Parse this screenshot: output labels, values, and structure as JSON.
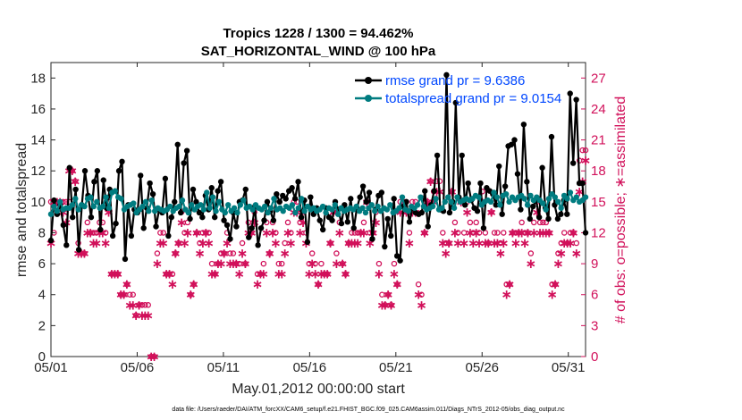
{
  "chart_data": {
    "type": "line",
    "title": "Tropics 1228 / 1300 = 94.462%",
    "subtitle": "SAT_HORIZONTAL_WIND @ 100 hPa",
    "xlabel": "May.01,2012 00:00:00 start",
    "ylabel": "rmse and totalspread",
    "y2label": "# of obs: o=possible; ∗=assimilated",
    "xlim": [
      0,
      31
    ],
    "ylim": [
      0,
      19
    ],
    "y2lim": [
      0,
      28.5
    ],
    "xticks": [
      0,
      5,
      10,
      15,
      20,
      25,
      30
    ],
    "xticklabels": [
      "05/01",
      "05/06",
      "05/11",
      "05/16",
      "05/21",
      "05/26",
      "05/31"
    ],
    "yticks": [
      0,
      2,
      4,
      6,
      8,
      10,
      12,
      14,
      16,
      18
    ],
    "y2ticks": [
      0,
      3,
      6,
      9,
      12,
      15,
      18,
      21,
      24,
      27
    ],
    "footer": "data file: /Users/raeder/DAI/ATM_forcXX/CAM6_setup/f.e21.FHIST_BGC.f09_025.CAM6assim.011/Diags_NTrS_2012-05/obs_diag_output.nc",
    "series": [
      {
        "name": "rmse grand pr = 9.6386",
        "color": "#000000",
        "axis": "left",
        "values": [
          7.5,
          10.1,
          9.2,
          9.8,
          8.5,
          7.2,
          12.2,
          9.0,
          10.8,
          6.9,
          9.8,
          12.0,
          10.4,
          9.0,
          11.3,
          12.0,
          8.2,
          11.4,
          9.6,
          10.8,
          7.8,
          8.6,
          12.0,
          12.6,
          6.3,
          9.8,
          7.8,
          9.5,
          9.3,
          11.7,
          8.3,
          9.6,
          11.2,
          10.5,
          8.4,
          9.5,
          9.3,
          11.5,
          7.8,
          9.0,
          10.0,
          13.7,
          9.3,
          12.5,
          13.3,
          8.9,
          10.8,
          10.0,
          9.3,
          9.0,
          10.4,
          9.5,
          10.9,
          9.0,
          10.7,
          11.3,
          8.8,
          8.5,
          7.6,
          9.3,
          8.4,
          10.0,
          10.1,
          10.8,
          7.7,
          8.3,
          9.7,
          7.2,
          8.3,
          8.8,
          10.0,
          9.4,
          8.8,
          10.5,
          10.0,
          10.4,
          10.2,
          10.7,
          10.9,
          10.2,
          11.3,
          9.0,
          10.1,
          7.4,
          10.3,
          9.2,
          9.6,
          8.8,
          8.2,
          9.6,
          9.0,
          8.8,
          10.0,
          9.5,
          8.6,
          9.8,
          8.7,
          10.2,
          8.3,
          9.6,
          10.3,
          11.0,
          10.0,
          10.6,
          7.6,
          9.5,
          10.4,
          10.6,
          7.1,
          8.9,
          7.8,
          10.2,
          6.5,
          6.2,
          9.7,
          10.0,
          8.7,
          9.6,
          9.3,
          9.2,
          9.3,
          10.7,
          8.4,
          9.8,
          10.7,
          13.0,
          9.5,
          9.4,
          18.2,
          9.3,
          10.0,
          16.4,
          10.3,
          13.0,
          9.8,
          11.2,
          10.1,
          9.6,
          9.4,
          11.2,
          8.3,
          10.9,
          10.7,
          10.5,
          9.8,
          12.3,
          9.2,
          11.0,
          13.6,
          13.7,
          14.0,
          11.8,
          9.5,
          15.0,
          11.3,
          8.9,
          9.7,
          10.1,
          9.0,
          12.2,
          9.6,
          8.9,
          14.2,
          9.8,
          8.9,
          9.2,
          10.1,
          9.2,
          17.0,
          12.5,
          16.6,
          11.2,
          11.2,
          8.0
        ]
      },
      {
        "name": "totalspread grand pr = 9.0154",
        "color": "#007c80",
        "axis": "left",
        "values": [
          9.2,
          9.7,
          9.4,
          10.0,
          9.5,
          9.6,
          9.6,
          9.8,
          10.2,
          9.5,
          9.8,
          9.7,
          10.2,
          10.3,
          9.7,
          10.0,
          9.6,
          9.7,
          10.3,
          9.6,
          10.6,
          10.7,
          10.3,
          10.2,
          9.5,
          9.7,
          9.8,
          9.9,
          9.3,
          9.5,
          9.7,
          10.0,
          9.4,
          10.1,
          9.4,
          9.6,
          9.5,
          9.4,
          9.5,
          9.7,
          9.4,
          9.6,
          9.7,
          10.1,
          9.5,
          9.3,
          9.8,
          9.5,
          9.7,
          9.8,
          9.5,
          10.6,
          9.6,
          10.3,
          9.4,
          10.0,
          9.5,
          9.3,
          9.8,
          9.4,
          9.6,
          9.3,
          9.8,
          10.1,
          9.6,
          9.7,
          9.5,
          9.8,
          9.6,
          9.5,
          9.7,
          9.3,
          9.6,
          10.2,
          9.5,
          9.6,
          9.4,
          9.7,
          9.6,
          9.8,
          9.3,
          9.6,
          10.2,
          9.4,
          9.7,
          9.5,
          9.6,
          9.4,
          9.5,
          9.7,
          9.3,
          9.6,
          9.5,
          9.8,
          9.2,
          9.6,
          9.4,
          9.5,
          9.6,
          9.5,
          9.7,
          9.4,
          9.6,
          9.3,
          9.6,
          9.8,
          9.4,
          9.7,
          9.4,
          9.6,
          9.5,
          9.8,
          9.3,
          9.4,
          9.6,
          10.3,
          9.5,
          9.4,
          9.7,
          9.6,
          9.8,
          10.3,
          9.7,
          9.5,
          9.6,
          9.7,
          10.2,
          9.5,
          9.6,
          10.0,
          10.3,
          10.0,
          9.6,
          10.3,
          10.0,
          10.1,
          10.2,
          10.1,
          10.2,
          10.4,
          10.3,
          9.8,
          10.0,
          10.1,
          10.0,
          10.6,
          10.3,
          9.8,
          10.4,
          10.5,
          10.0,
          10.3,
          10.1,
          10.3,
          10.4,
          10.2,
          9.8,
          10.4,
          10.1,
          10.3,
          10.1,
          9.9,
          9.5,
          10.2,
          10.5,
          10.3,
          10.0,
          9.6,
          10.4,
          10.2,
          10.6,
          10.1,
          10.3,
          10.0,
          10.1,
          10.3
        ]
      },
      {
        "name": "possible",
        "marker": "circle",
        "color": "#d1105a",
        "axis": "right",
        "values": [
          15,
          12,
          15,
          15,
          15,
          15,
          15,
          18,
          17,
          11,
          10,
          10,
          13,
          12,
          12,
          12,
          13,
          13,
          12,
          15,
          8,
          8,
          8,
          6,
          6,
          7,
          6,
          6,
          4,
          5,
          5,
          5,
          5,
          0,
          0,
          10,
          12,
          12,
          8,
          8,
          8,
          10,
          11,
          14,
          12,
          13,
          6,
          7,
          12,
          11,
          12,
          12,
          12,
          9,
          8,
          9,
          10,
          10,
          12,
          10,
          10,
          9,
          9,
          11,
          9,
          13,
          12,
          14,
          8,
          8,
          9,
          13,
          10,
          13,
          12,
          9,
          9,
          11,
          13,
          12,
          15,
          15,
          13,
          14,
          12,
          9,
          10,
          9,
          7,
          9,
          8,
          8,
          11,
          14,
          10,
          13,
          9,
          8,
          11,
          12,
          12,
          12,
          12,
          13,
          15,
          12,
          12,
          14,
          9,
          6,
          5,
          6,
          5,
          9,
          7,
          15,
          15,
          15,
          12,
          15,
          15,
          7,
          6,
          12,
          15,
          17,
          16,
          17,
          17,
          12,
          11,
          11,
          16,
          13,
          12,
          15,
          12,
          15,
          13,
          12,
          13,
          12,
          16,
          12,
          11,
          14,
          12,
          12,
          11,
          12,
          7,
          7,
          12,
          12,
          12,
          13,
          12,
          12,
          10,
          13,
          15,
          13,
          13,
          13,
          12,
          7,
          7,
          10,
          11,
          12,
          11,
          12,
          12,
          11,
          19,
          20,
          20
        ]
      },
      {
        "name": "assimilated",
        "marker": "asterisk",
        "color": "#d1105a",
        "axis": "right",
        "values": [
          11,
          15,
          15,
          15,
          14,
          13,
          18,
          18,
          17,
          10,
          10,
          10,
          12,
          12,
          11,
          11,
          12,
          12,
          11,
          14,
          8,
          8,
          8,
          6,
          6,
          7,
          5,
          5,
          4,
          5,
          4,
          4,
          4,
          0,
          0,
          9,
          11,
          11,
          8,
          8,
          7,
          10,
          11,
          13,
          11,
          12,
          6,
          7,
          12,
          10,
          11,
          12,
          11,
          8,
          8,
          9,
          9,
          10,
          11,
          9,
          9,
          9,
          8,
          10,
          9,
          12,
          12,
          13,
          7,
          8,
          8,
          12,
          10,
          12,
          11,
          8,
          8,
          10,
          12,
          11,
          14,
          14,
          12,
          13,
          11,
          8,
          9,
          8,
          7,
          8,
          8,
          8,
          11,
          14,
          9,
          12,
          9,
          8,
          11,
          11,
          11,
          11,
          12,
          12,
          15,
          11,
          12,
          13,
          8,
          5,
          5,
          6,
          5,
          8,
          7,
          14,
          14,
          14,
          11,
          14,
          14,
          6,
          5,
          12,
          15,
          17,
          15,
          16,
          16,
          11,
          10,
          11,
          16,
          12,
          11,
          15,
          11,
          14,
          12,
          11,
          12,
          11,
          15,
          11,
          11,
          14,
          11,
          11,
          10,
          11,
          6,
          7,
          12,
          11,
          12,
          12,
          11,
          12,
          9,
          12,
          14,
          12,
          12,
          12,
          12,
          6,
          7,
          9,
          10,
          11,
          11,
          11,
          12,
          10,
          16,
          17,
          19
        ]
      }
    ]
  }
}
